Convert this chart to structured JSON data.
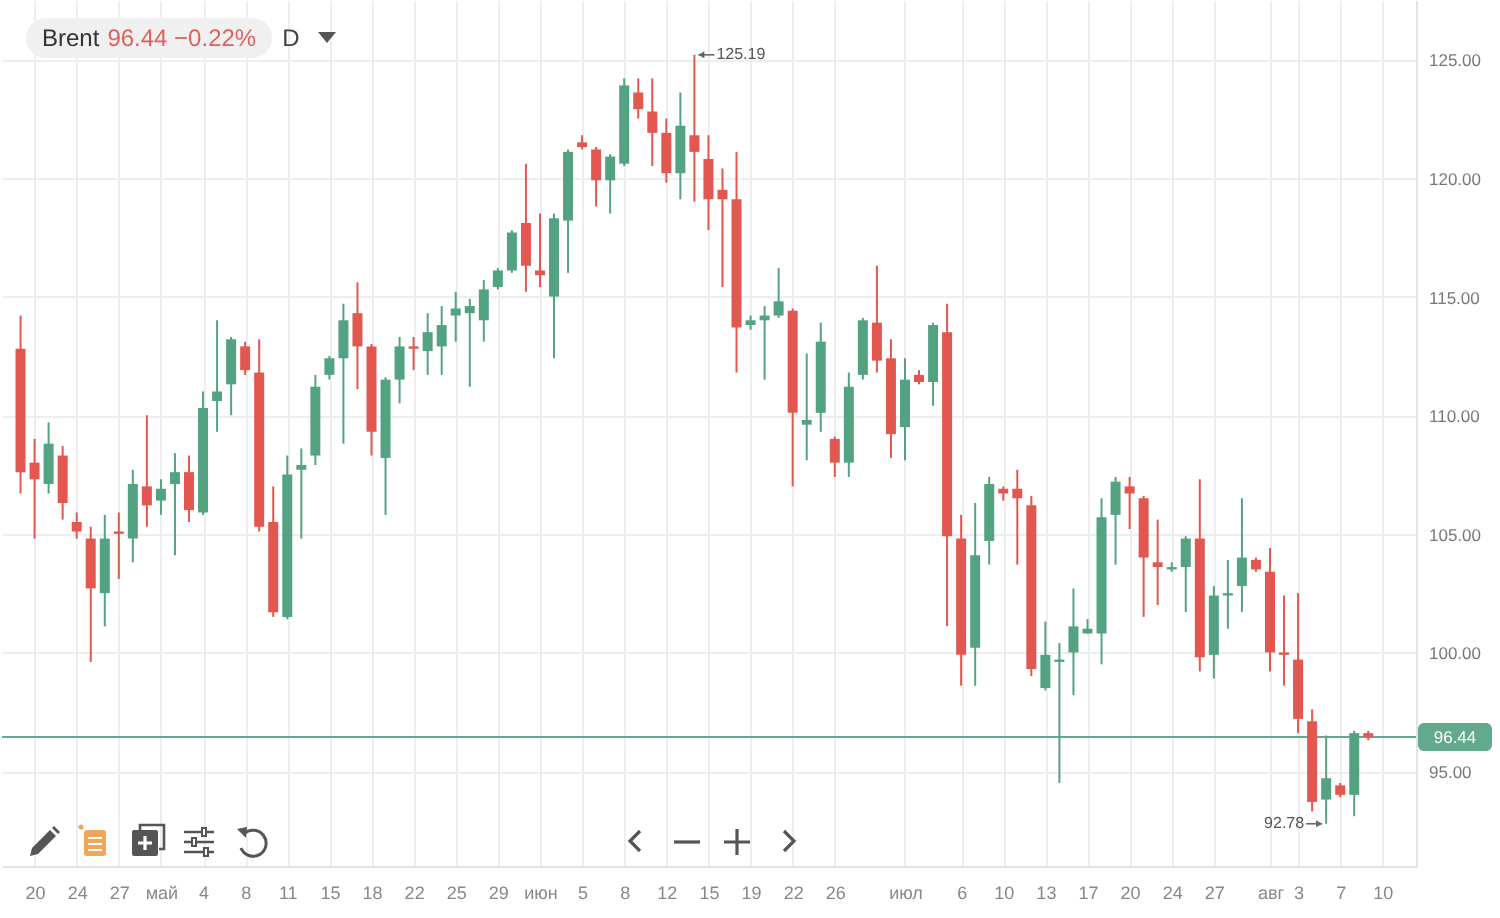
{
  "chart_data": {
    "type": "candlestick",
    "title": "Brent",
    "subtitle": "96.44 −0.22%",
    "annotations": [
      "D",
      "125.19",
      "92.78"
    ],
    "categories": [
      null,
      "20",
      null,
      null,
      "24",
      null,
      null,
      "27",
      null,
      null,
      "май",
      null,
      null,
      "4",
      null,
      null,
      "8",
      null,
      null,
      "11",
      null,
      null,
      "15",
      null,
      null,
      "18",
      null,
      null,
      "22",
      null,
      null,
      "25",
      null,
      null,
      "29",
      null,
      null,
      "июн",
      null,
      null,
      "5",
      null,
      null,
      "8",
      null,
      null,
      "12",
      null,
      null,
      "15",
      null,
      null,
      "19",
      null,
      null,
      "22",
      null,
      null,
      "26",
      null,
      null,
      null,
      null,
      "июл",
      null,
      null,
      null,
      "6",
      null,
      null,
      "10",
      null,
      null,
      "13",
      null,
      null,
      "17",
      null,
      null,
      "20",
      null,
      null,
      "24",
      null,
      null,
      "27",
      null,
      null,
      null,
      "авг",
      null,
      "3",
      null,
      null,
      "7",
      null,
      null,
      "10"
    ],
    "ohlc": [
      [
        112.8,
        114.2,
        106.7,
        107.6
      ],
      [
        108.0,
        109.0,
        104.8,
        107.3
      ],
      [
        107.1,
        109.7,
        106.7,
        108.8
      ],
      [
        108.3,
        108.7,
        105.6,
        106.3
      ],
      [
        105.5,
        105.9,
        104.8,
        105.1
      ],
      [
        104.8,
        105.3,
        99.6,
        102.7
      ],
      [
        102.5,
        105.8,
        101.1,
        104.8
      ],
      [
        105.1,
        105.9,
        103.1,
        105.0
      ],
      [
        104.8,
        107.7,
        103.8,
        107.1
      ],
      [
        107.0,
        110.0,
        105.3,
        106.2
      ],
      [
        106.4,
        107.3,
        105.8,
        106.9
      ],
      [
        107.1,
        108.4,
        104.1,
        107.6
      ],
      [
        107.6,
        108.3,
        105.5,
        106.0
      ],
      [
        105.9,
        111.0,
        105.8,
        110.3
      ],
      [
        110.6,
        114.0,
        109.3,
        111.0
      ],
      [
        111.3,
        113.3,
        110.0,
        113.2
      ],
      [
        112.9,
        113.1,
        111.7,
        111.9
      ],
      [
        111.8,
        113.2,
        105.1,
        105.3
      ],
      [
        105.5,
        107.0,
        101.5,
        101.7
      ],
      [
        101.5,
        108.3,
        101.4,
        107.5
      ],
      [
        107.7,
        108.6,
        104.8,
        107.9
      ],
      [
        108.3,
        111.7,
        107.9,
        111.2
      ],
      [
        111.7,
        112.5,
        111.5,
        112.4
      ],
      [
        112.4,
        114.7,
        108.8,
        114.0
      ],
      [
        114.3,
        115.6,
        111.1,
        112.9
      ],
      [
        112.9,
        113.0,
        108.3,
        109.3
      ],
      [
        108.2,
        111.6,
        105.8,
        111.5
      ],
      [
        111.5,
        113.3,
        110.5,
        112.9
      ],
      [
        112.9,
        113.3,
        111.9,
        112.8
      ],
      [
        112.7,
        114.3,
        111.7,
        113.5
      ],
      [
        112.9,
        114.6,
        111.7,
        113.8
      ],
      [
        114.2,
        115.2,
        113.1,
        114.5
      ],
      [
        114.3,
        114.9,
        111.2,
        114.6
      ],
      [
        114.0,
        115.7,
        113.1,
        115.3
      ],
      [
        115.4,
        116.2,
        115.3,
        116.1
      ],
      [
        116.1,
        117.8,
        116.0,
        117.7
      ],
      [
        118.1,
        120.6,
        115.2,
        116.3
      ],
      [
        116.1,
        118.5,
        115.4,
        115.9
      ],
      [
        115.0,
        118.5,
        112.4,
        118.3
      ],
      [
        118.2,
        121.2,
        116.0,
        121.1
      ],
      [
        121.5,
        121.8,
        121.2,
        121.3
      ],
      [
        121.2,
        121.3,
        118.8,
        119.9
      ],
      [
        119.9,
        121.0,
        118.5,
        120.9
      ],
      [
        120.6,
        124.2,
        120.5,
        123.9
      ],
      [
        123.6,
        124.2,
        122.5,
        122.9
      ],
      [
        122.8,
        124.2,
        120.5,
        121.9
      ],
      [
        121.9,
        122.5,
        119.8,
        120.2
      ],
      [
        120.2,
        123.6,
        119.1,
        122.2
      ],
      [
        121.8,
        125.19,
        119.0,
        121.1
      ],
      [
        120.8,
        121.8,
        117.8,
        119.1
      ],
      [
        119.5,
        120.4,
        115.4,
        119.1
      ],
      [
        119.1,
        121.1,
        111.8,
        113.7
      ],
      [
        113.8,
        114.2,
        113.6,
        114.0
      ],
      [
        114.0,
        114.6,
        111.5,
        114.2
      ],
      [
        114.2,
        116.2,
        114.1,
        114.8
      ],
      [
        114.4,
        114.5,
        107.0,
        110.1
      ],
      [
        109.6,
        112.6,
        108.1,
        109.8
      ],
      [
        110.1,
        113.9,
        109.3,
        113.1
      ],
      [
        109.0,
        109.1,
        107.4,
        108.0
      ],
      [
        108.0,
        111.8,
        107.4,
        111.2
      ],
      [
        111.7,
        114.1,
        111.5,
        114.0
      ],
      [
        113.9,
        116.3,
        111.8,
        112.3
      ],
      [
        112.4,
        113.2,
        108.2,
        109.2
      ],
      [
        109.5,
        112.4,
        108.1,
        111.5
      ],
      [
        111.7,
        111.9,
        111.3,
        111.4
      ],
      [
        111.4,
        113.9,
        110.4,
        113.8
      ],
      [
        113.5,
        114.7,
        101.1,
        104.9
      ],
      [
        104.8,
        105.8,
        98.6,
        99.9
      ],
      [
        100.2,
        106.3,
        98.6,
        104.1
      ],
      [
        104.7,
        107.4,
        103.7,
        107.1
      ],
      [
        106.9,
        107.0,
        106.4,
        106.7
      ],
      [
        106.9,
        107.7,
        103.7,
        106.5
      ],
      [
        106.2,
        106.6,
        99.0,
        99.3
      ],
      [
        98.5,
        101.3,
        98.4,
        99.9
      ],
      [
        99.6,
        100.4,
        94.5,
        99.7
      ],
      [
        100.0,
        102.7,
        98.2,
        101.1
      ],
      [
        100.8,
        101.4,
        100.8,
        101.0
      ],
      [
        100.8,
        106.5,
        99.5,
        105.7
      ],
      [
        105.8,
        107.4,
        103.7,
        107.2
      ],
      [
        107.0,
        107.4,
        105.2,
        106.7
      ],
      [
        106.5,
        106.6,
        101.5,
        104.0
      ],
      [
        103.8,
        105.6,
        102.0,
        103.6
      ],
      [
        103.5,
        103.8,
        103.4,
        103.6
      ],
      [
        103.6,
        104.9,
        101.7,
        104.8
      ],
      [
        104.8,
        107.3,
        99.2,
        99.8
      ],
      [
        99.9,
        102.8,
        98.9,
        102.4
      ],
      [
        102.4,
        103.9,
        101.0,
        102.5
      ],
      [
        102.8,
        106.5,
        101.7,
        104.0
      ],
      [
        103.9,
        104.0,
        103.4,
        103.5
      ],
      [
        103.4,
        104.4,
        99.2,
        100.0
      ],
      [
        100.0,
        102.4,
        98.6,
        99.9
      ],
      [
        99.7,
        102.5,
        96.6,
        97.2
      ],
      [
        97.1,
        97.6,
        93.3,
        93.7
      ],
      [
        93.8,
        96.5,
        92.78,
        94.7
      ],
      [
        94.4,
        94.5,
        93.9,
        94.0
      ],
      [
        94.0,
        96.7,
        93.1,
        96.6
      ],
      [
        96.6,
        96.7,
        96.3,
        96.44
      ],
      null
    ],
    "colors": [
      "#e2574f",
      "#e2574f",
      "#53a383",
      "#e2574f",
      "#e2574f",
      "#e2574f",
      "#53a383",
      "#e2574f",
      "#53a383",
      "#e2574f",
      "#53a383",
      "#53a383",
      "#e2574f",
      "#53a383",
      "#53a383",
      "#53a383",
      "#e2574f",
      "#e2574f",
      "#e2574f",
      "#53a383",
      "#53a383",
      "#53a383",
      "#53a383",
      "#53a383",
      "#e2574f",
      "#e2574f",
      "#53a383",
      "#53a383",
      "#e2574f",
      "#53a383",
      "#53a383",
      "#53a383",
      "#53a383",
      "#53a383",
      "#53a383",
      "#53a383",
      "#e2574f",
      "#e2574f",
      "#53a383",
      "#53a383",
      "#e2574f",
      "#e2574f",
      "#53a383",
      "#53a383",
      "#e2574f",
      "#e2574f",
      "#e2574f",
      "#53a383",
      "#e2574f",
      "#e2574f",
      "#e2574f",
      "#e2574f",
      "#53a383",
      "#53a383",
      "#53a383",
      "#e2574f",
      "#53a383",
      "#53a383",
      "#e2574f",
      "#53a383",
      "#53a383",
      "#e2574f",
      "#e2574f",
      "#53a383",
      "#e2574f",
      "#53a383",
      "#e2574f",
      "#e2574f",
      "#53a383",
      "#53a383",
      "#e2574f",
      "#e2574f",
      "#e2574f",
      "#53a383",
      "#53a383",
      "#53a383",
      "#53a383",
      "#53a383",
      "#53a383",
      "#e2574f",
      "#e2574f",
      "#e2574f",
      "#53a383",
      "#53a383",
      "#e2574f",
      "#53a383",
      "#53a383",
      "#53a383",
      "#e2574f",
      "#e2574f",
      "#e2574f",
      "#e2574f",
      "#e2574f",
      "#53a383",
      "#e2574f",
      "#53a383",
      "#e2574f",
      null
    ],
    "ylim": [
      91,
      127.5
    ],
    "yticks": [
      {
        "value": 95,
        "label": "95.00"
      },
      {
        "value": 100,
        "label": "100.00"
      },
      {
        "value": 105,
        "label": "105.00"
      },
      {
        "value": 110,
        "label": "110.00"
      },
      {
        "value": 115,
        "label": "115.00"
      },
      {
        "value": 120,
        "label": "120.00"
      },
      {
        "value": 125,
        "label": "125.00"
      }
    ],
    "grid": true,
    "ref_lines": [
      {
        "axis": "y",
        "value": 96.44,
        "label": "96.44",
        "color": "#62a98e"
      }
    ]
  }
}
